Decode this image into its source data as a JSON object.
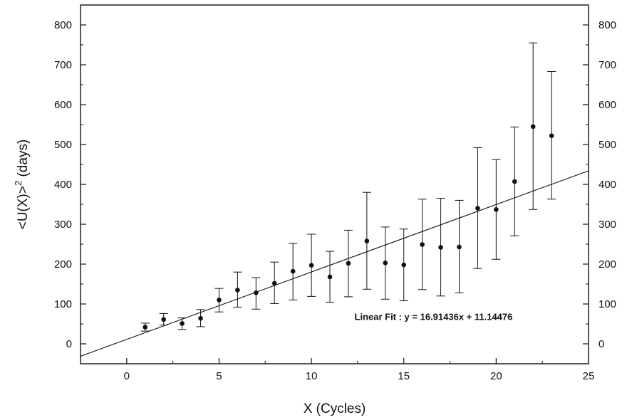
{
  "chart_data": {
    "type": "scatter",
    "title": "",
    "xlabel": "X (Cycles)",
    "ylabel_main": "<U(X)>",
    "ylabel_sup": "2",
    "ylabel_tail": " (days)",
    "xlim": [
      -2.5,
      25
    ],
    "ylim": [
      -50,
      850
    ],
    "xticks": [
      0,
      5,
      10,
      15,
      20,
      25
    ],
    "yticks": [
      0,
      100,
      200,
      300,
      400,
      500,
      600,
      700,
      800
    ],
    "right_axis_ticks": true,
    "grid": false,
    "series": [
      {
        "type": "scatter-errorbar",
        "x": [
          1,
          2,
          3,
          4,
          5,
          6,
          7,
          8,
          9,
          10,
          11,
          12,
          13,
          14,
          15,
          16,
          17,
          18,
          19,
          20,
          21,
          22,
          23
        ],
        "y": [
          42,
          61,
          51,
          64,
          110,
          135,
          128,
          152,
          182,
          197,
          168,
          202,
          258,
          203,
          198,
          249,
          242,
          243,
          340,
          337,
          407,
          545,
          522
        ],
        "err_low": [
          32,
          47,
          36,
          43,
          80,
          92,
          87,
          101,
          110,
          119,
          104,
          118,
          137,
          112,
          108,
          136,
          120,
          128,
          189,
          212,
          271,
          337,
          363
        ],
        "err_high": [
          52,
          76,
          65,
          86,
          139,
          180,
          166,
          205,
          252,
          275,
          232,
          285,
          380,
          293,
          288,
          363,
          365,
          360,
          492,
          462,
          544,
          755,
          683
        ]
      },
      {
        "type": "line",
        "slope": 16.91436,
        "intercept": 11.14476
      }
    ],
    "annotation": "Linear Fit : y = 16.91436x + 11.14476",
    "annotation_at": [
      12.33,
      60
    ]
  }
}
